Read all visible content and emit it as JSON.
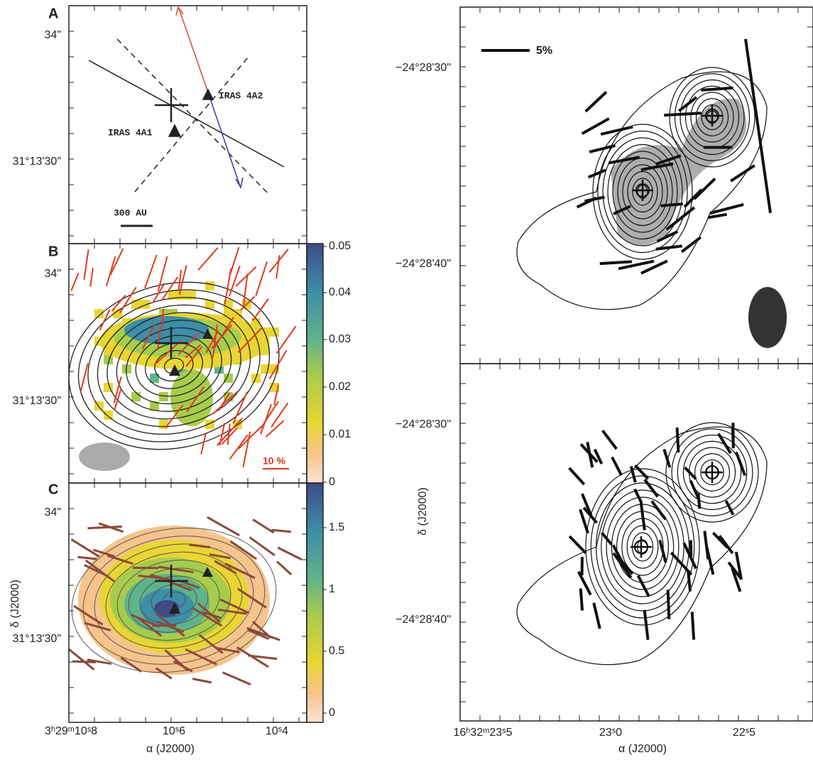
{
  "left": {
    "panels": [
      {
        "label": "A",
        "y_labels": [
          "34\"",
          "31°13'30\""
        ],
        "annotations": [
          "IRAS 4A2",
          "IRAS 4A1"
        ],
        "scale_bar": "300 AU"
      },
      {
        "label": "B",
        "y_labels": [
          "34\"",
          "31°13'30\""
        ],
        "colorbar_ticks": [
          "0.05",
          "0.04",
          "0.03",
          "0.02",
          "0.01",
          "0"
        ],
        "scale_bar": "10 %"
      },
      {
        "label": "C",
        "y_labels": [
          "34\"",
          "31°13'30\""
        ],
        "colorbar_ticks": [
          "1.5",
          "1",
          "0.5",
          "0"
        ]
      }
    ],
    "y_axis_label": "δ (J2000)",
    "x_ticks": [
      "3ʰ29ᵐ10ˢ8",
      "10ˢ6",
      "10ˢ4"
    ],
    "x_axis_label": "α (J2000)"
  },
  "right": {
    "panels": [
      {
        "y_labels": [
          "−24°28'30\"",
          "−24°28'40\""
        ],
        "scale_bar": "5%"
      },
      {
        "y_labels": [
          "−24°28'30\"",
          "−24°28'40\""
        ]
      }
    ],
    "y_axis_label": "δ (J2000)",
    "x_ticks": [
      "16ʰ32ᵐ23ˢ5",
      "23ˢ0",
      "22ˢ5"
    ],
    "x_axis_label": "α (J2000)"
  }
}
